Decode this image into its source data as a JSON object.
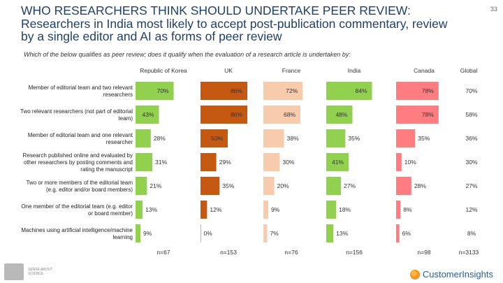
{
  "page": {
    "title_lines": [
      "WHO RESEARCHERS THINK SHOULD UNDERTAKE PEER REVIEW:",
      "Researchers in India most likely to accept post-publication commentary, review",
      "by a single editor and AI as forms of peer review"
    ],
    "page_number": "33",
    "question": "Which of the below qualifies as peer review; does it qualify when the evaluation of a research article is undertaken by:",
    "footer": {
      "brand_left": "SENSE ABOUT SCIENCE",
      "brand_right": "CustomerInsights"
    }
  },
  "chart_data": {
    "type": "bar",
    "orientation": "horizontal-small-multiples",
    "categories": [
      "Member of editorial team and two relevant researchers",
      "Two relevant researchers (not part of editorial team)",
      "Member of editorial team and one relevant researcher",
      "Research published online and evaluated by other researchers by posting comments and rating the manuscript",
      "Two or more members of the editorial team (e.g. editor and/or board members)",
      "One member of the editorial team (e.g. editor or board member)",
      "Machines using artificial intelligence/machine learning"
    ],
    "category_lines": [
      [
        "Member of editorial team and two relevant",
        "researchers"
      ],
      [
        "Two relevant researchers (not part of editorial",
        "team)"
      ],
      [
        "Member of editorial team and one relevant",
        "researcher"
      ],
      [
        "Research published online and evaluated by",
        "other researchers by posting comments and",
        "rating the manuscript"
      ],
      [
        "Two or more members of the editorial team",
        "(e.g. editor and/or board members)"
      ],
      [
        "One member of the editorial team (e.g. editor",
        "or board member)"
      ],
      [
        "Machines using artificial intelligence/machine",
        "learning"
      ]
    ],
    "value_suffix": "%",
    "series": [
      {
        "name": "Republic of Korea",
        "color": "#92d050",
        "values": [
          70,
          43,
          28,
          31,
          21,
          13,
          9
        ],
        "n": "n=67"
      },
      {
        "name": "UK",
        "color": "#c65911",
        "values": [
          86,
          86,
          50,
          29,
          35,
          12,
          0
        ],
        "n": "n=153"
      },
      {
        "name": "France",
        "color": "#f8cbad",
        "values": [
          72,
          68,
          38,
          30,
          20,
          9,
          7
        ],
        "n": "n=76"
      },
      {
        "name": "India",
        "color": "#92d050",
        "values": [
          84,
          48,
          35,
          41,
          27,
          18,
          13
        ],
        "n": "n=156"
      },
      {
        "name": "Canada",
        "color": "#ff7c80",
        "values": [
          78,
          78,
          35,
          10,
          28,
          8,
          6
        ],
        "n": "n=98"
      },
      {
        "name": "Global",
        "color": null,
        "values": [
          70,
          58,
          36,
          30,
          27,
          12,
          8
        ],
        "n": "n=3133"
      }
    ],
    "grid": false,
    "legend": "none"
  }
}
